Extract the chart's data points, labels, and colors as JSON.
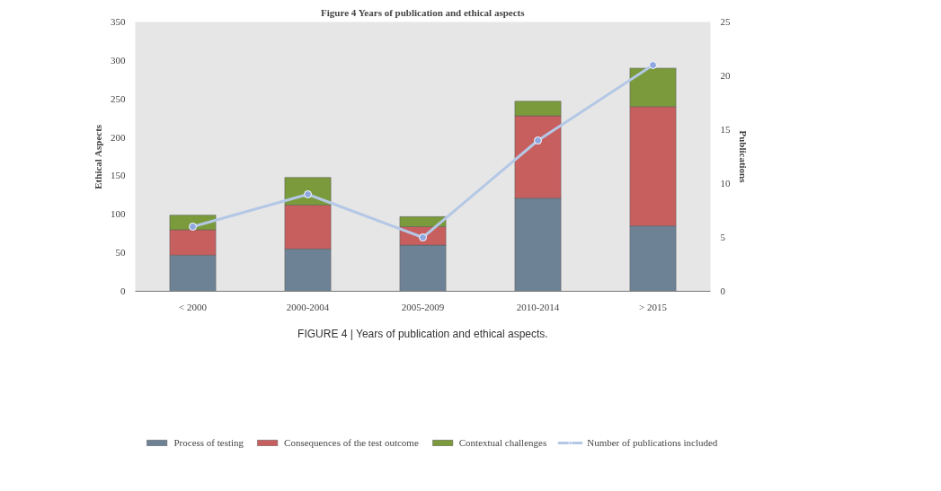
{
  "chart_data": {
    "type": "bar",
    "stacked": true,
    "title": "Figure 4 Years of publication and ethical aspects",
    "ylabel": "Ethical Aspects",
    "y2label": "Publications",
    "categories": [
      "< 2000",
      "2000-2004",
      "2005-2009",
      "2010-2014",
      "> 2015"
    ],
    "series": [
      {
        "name": "Process of testing",
        "color": "#6e8296",
        "values": [
          47,
          55,
          60,
          121,
          85
        ]
      },
      {
        "name": "Consequences of the test outcome",
        "color": "#c75f5f",
        "values": [
          33,
          57,
          24,
          107,
          155
        ]
      },
      {
        "name": "Contextual challenges",
        "color": "#7a9a3c",
        "values": [
          19,
          36,
          13,
          19,
          50
        ]
      },
      {
        "name": "Number of publications included",
        "type": "line",
        "axis": "y2",
        "color": "#b4c8e6",
        "marker": "circle",
        "values": [
          6,
          9,
          5,
          14,
          21
        ]
      }
    ],
    "ylim": [
      0,
      350
    ],
    "yticks": [
      0,
      50,
      100,
      150,
      200,
      250,
      300,
      350
    ],
    "y2lim": [
      0,
      25
    ],
    "y2ticks": [
      0,
      5,
      10,
      15,
      20,
      25
    ],
    "legend": "bottom",
    "annotations": [
      "FIGURE 4 | Years of publication and ethical aspects."
    ]
  }
}
